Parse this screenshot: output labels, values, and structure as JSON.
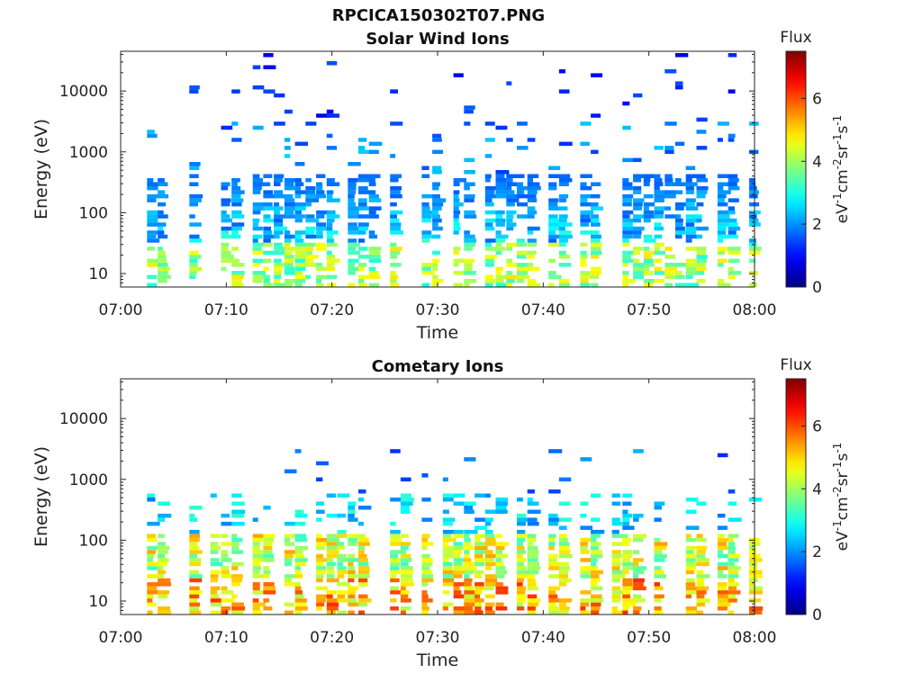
{
  "figure": {
    "filename": "RPCICA150302T07.PNG"
  },
  "chart_data": [
    {
      "type": "heatmap",
      "title": "Solar Wind Ions",
      "xlabel": "Time",
      "ylabel": "Energy (eV)",
      "x_ticks": [
        "07:00",
        "07:10",
        "07:20",
        "07:30",
        "07:40",
        "07:50",
        "08:00"
      ],
      "x_range": [
        "07:00",
        "08:00"
      ],
      "y_ticks": [
        10,
        100,
        1000,
        10000
      ],
      "y_tick_labels": [
        "10",
        "100",
        "1000",
        "10000"
      ],
      "y_scale": "log",
      "y_range": [
        6,
        45000
      ],
      "colorbar": {
        "label": "Flux",
        "units_label": "eV-1cm-2sr-1s-1",
        "range": [
          0,
          7.5
        ],
        "ticks": [
          0,
          2,
          4,
          6
        ],
        "colormap": "jet"
      },
      "pattern": {
        "low_energy_max_flux": 5.0,
        "core_energy_range_eV": [
          25,
          400
        ],
        "sparse_high_energy_to_eV": 42000,
        "ion_population": "solar wind"
      }
    },
    {
      "type": "heatmap",
      "title": "Cometary Ions",
      "xlabel": "Time",
      "ylabel": "Energy (eV)",
      "x_ticks": [
        "07:00",
        "07:10",
        "07:20",
        "07:30",
        "07:40",
        "07:50",
        "08:00"
      ],
      "x_range": [
        "07:00",
        "08:00"
      ],
      "y_ticks": [
        10,
        100,
        1000,
        10000
      ],
      "y_tick_labels": [
        "10",
        "100",
        "1000",
        "10000"
      ],
      "y_scale": "log",
      "y_range": [
        6,
        45000
      ],
      "colorbar": {
        "label": "Flux",
        "units_label": "eV-1cm-2sr-1s-1",
        "range": [
          0,
          7.5
        ],
        "ticks": [
          0,
          2,
          4,
          6
        ],
        "colormap": "jet"
      },
      "pattern": {
        "low_energy_max_flux": 6.3,
        "core_energy_range_eV": [
          8,
          150
        ],
        "sparse_high_energy_to_eV": 3000,
        "ion_population": "cometary"
      }
    }
  ]
}
